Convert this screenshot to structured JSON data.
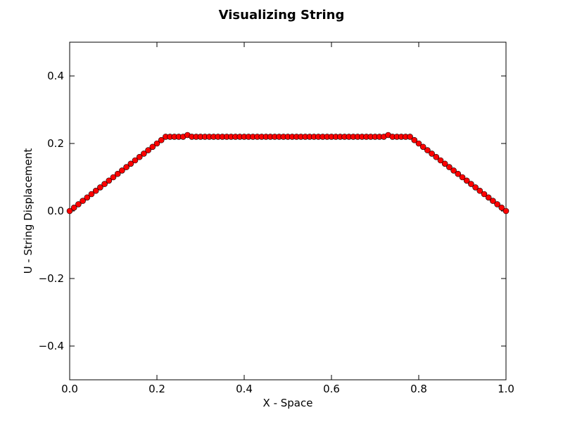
{
  "chart_data": {
    "type": "scatter",
    "title": "Visualizing String",
    "xlabel": "X - Space",
    "ylabel": "U - String Displacement",
    "xlim": [
      0.0,
      1.0
    ],
    "ylim": [
      -0.5,
      0.5
    ],
    "x_ticks": [
      0.0,
      0.2,
      0.4,
      0.6,
      0.8,
      1.0
    ],
    "x_tick_labels": [
      "0.0",
      "0.2",
      "0.4",
      "0.6",
      "0.8",
      "1.0"
    ],
    "y_ticks": [
      -0.4,
      -0.2,
      0.0,
      0.2,
      0.4
    ],
    "y_tick_labels": [
      "−0.4",
      "−0.2",
      "0.0",
      "0.2",
      "0.4"
    ],
    "grid": false,
    "legend": "none",
    "marker_color": "#ff0000",
    "marker_edge_color": "#000000",
    "line_color": "#000000",
    "series": [
      {
        "x": [
          0.0,
          0.01,
          0.02,
          0.03,
          0.04,
          0.05,
          0.06,
          0.07,
          0.08,
          0.09,
          0.1,
          0.11,
          0.12,
          0.13,
          0.14,
          0.15,
          0.16,
          0.17,
          0.18,
          0.19,
          0.2,
          0.21,
          0.22,
          0.23,
          0.24,
          0.25,
          0.26,
          0.27,
          0.28,
          0.29,
          0.3,
          0.31,
          0.32,
          0.33,
          0.34,
          0.35,
          0.36,
          0.37,
          0.38,
          0.39,
          0.4,
          0.41,
          0.42,
          0.43,
          0.44,
          0.45,
          0.46,
          0.47,
          0.48,
          0.49,
          0.5,
          0.51,
          0.52,
          0.53,
          0.54,
          0.55,
          0.56,
          0.57,
          0.58,
          0.59,
          0.6,
          0.61,
          0.62,
          0.63,
          0.64,
          0.65,
          0.66,
          0.67,
          0.68,
          0.69,
          0.7,
          0.71,
          0.72,
          0.73,
          0.74,
          0.75,
          0.76,
          0.77,
          0.78,
          0.79,
          0.8,
          0.81,
          0.82,
          0.83,
          0.84,
          0.85,
          0.86,
          0.87,
          0.88,
          0.89,
          0.9,
          0.91,
          0.92,
          0.93,
          0.94,
          0.95,
          0.96,
          0.97,
          0.98,
          0.99,
          1.0
        ],
        "y": [
          0.0,
          0.01,
          0.02,
          0.03,
          0.04,
          0.05,
          0.06,
          0.07,
          0.08,
          0.09,
          0.1,
          0.11,
          0.12,
          0.13,
          0.14,
          0.15,
          0.16,
          0.17,
          0.18,
          0.19,
          0.2,
          0.21,
          0.22,
          0.22,
          0.22,
          0.22,
          0.22,
          0.225,
          0.22,
          0.22,
          0.22,
          0.22,
          0.22,
          0.22,
          0.22,
          0.22,
          0.22,
          0.22,
          0.22,
          0.22,
          0.22,
          0.22,
          0.22,
          0.22,
          0.22,
          0.22,
          0.22,
          0.22,
          0.22,
          0.22,
          0.22,
          0.22,
          0.22,
          0.22,
          0.22,
          0.22,
          0.22,
          0.22,
          0.22,
          0.22,
          0.22,
          0.22,
          0.22,
          0.22,
          0.22,
          0.22,
          0.22,
          0.22,
          0.22,
          0.22,
          0.22,
          0.22,
          0.22,
          0.225,
          0.22,
          0.22,
          0.22,
          0.22,
          0.22,
          0.21,
          0.2,
          0.19,
          0.18,
          0.17,
          0.16,
          0.15,
          0.14,
          0.13,
          0.12,
          0.11,
          0.1,
          0.09,
          0.08,
          0.07,
          0.06,
          0.05,
          0.04,
          0.03,
          0.02,
          0.01,
          0.0
        ]
      }
    ]
  }
}
